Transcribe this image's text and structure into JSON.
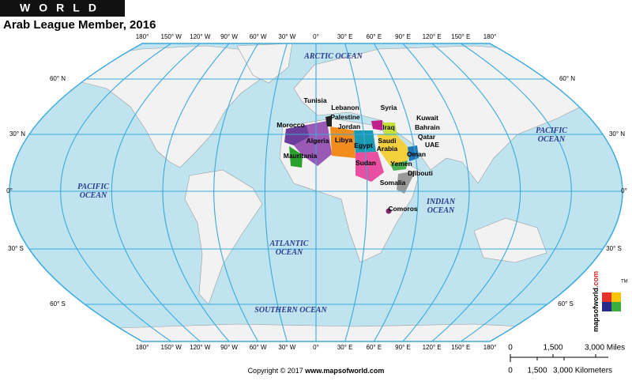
{
  "header": {
    "title": "WORLD",
    "subtitle": "Arab League Member, 2016"
  },
  "longitude_labels": [
    "180°",
    "150° W",
    "120° W",
    "90° W",
    "60° W",
    "30° W",
    "0°",
    "30° E",
    "60° E",
    "90° E",
    "120° E",
    "150° E",
    "180°"
  ],
  "latitude_labels": [
    "60° N",
    "30° N",
    "0°",
    "30° S",
    "60° S"
  ],
  "oceans": [
    {
      "lines": [
        "ARCTIC OCEAN"
      ]
    },
    {
      "lines": [
        "PACIFIC",
        "OCEAN"
      ]
    },
    {
      "lines": [
        "PACIFIC",
        "OCEAN"
      ]
    },
    {
      "lines": [
        "ATLANTIC",
        "OCEAN"
      ]
    },
    {
      "lines": [
        "INDIAN",
        "OCEAN"
      ]
    },
    {
      "lines": [
        "SOUTHERN OCEAN"
      ]
    }
  ],
  "countries": [
    {
      "lines": [
        "Tunisia"
      ]
    },
    {
      "lines": [
        "Lebanon"
      ]
    },
    {
      "lines": [
        "Palestine"
      ]
    },
    {
      "lines": [
        "Syria"
      ]
    },
    {
      "lines": [
        "Jordan"
      ]
    },
    {
      "lines": [
        "Morocco"
      ]
    },
    {
      "lines": [
        "Iraq"
      ]
    },
    {
      "lines": [
        "Kuwait"
      ]
    },
    {
      "lines": [
        "Bahrain"
      ]
    },
    {
      "lines": [
        "Qatar"
      ]
    },
    {
      "lines": [
        "UAE"
      ]
    },
    {
      "lines": [
        "Algeria"
      ]
    },
    {
      "lines": [
        "Libya"
      ]
    },
    {
      "lines": [
        "Egypt"
      ]
    },
    {
      "lines": [
        "Saudi",
        "Arabia"
      ]
    },
    {
      "lines": [
        "Oman"
      ]
    },
    {
      "lines": [
        "Yemen"
      ]
    },
    {
      "lines": [
        "Mauritania"
      ]
    },
    {
      "lines": [
        "Sudan"
      ]
    },
    {
      "lines": [
        "Djibouti"
      ]
    },
    {
      "lines": [
        "Somalia"
      ]
    },
    {
      "lines": [
        "Comoros"
      ]
    }
  ],
  "scale": {
    "miles": [
      "0",
      "1,500",
      "3,000 Miles"
    ],
    "kilometers": [
      "0",
      "1,500",
      "3,000 Kilometers"
    ]
  },
  "copyright": {
    "text": "Copyright © 2017",
    "site": "www.mapsofworld.com"
  },
  "logo": {
    "name": "mapsofworld",
    "suffix": ".com",
    "tm": "TM"
  }
}
